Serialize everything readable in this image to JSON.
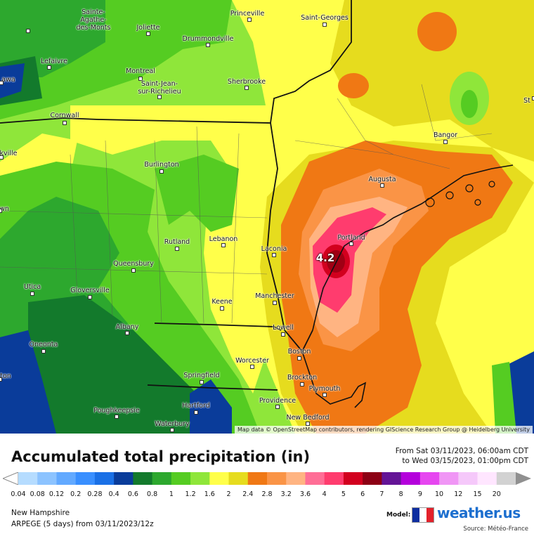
{
  "map": {
    "attribution": "Map data © OpenStreetMap contributors, rendering GIScience Research Group @ Heidelberg University",
    "max_value_label": "4.2",
    "cities": [
      {
        "name": "Sainte-Agathe-des-Monts",
        "lines": [
          "Sainte-",
          "Agathe-",
          "des-Monts"
        ]
      },
      {
        "name": "Joliette",
        "lines": [
          "Joliette"
        ]
      },
      {
        "name": "Drummondville",
        "lines": [
          "Drummondville"
        ]
      },
      {
        "name": "Princeville",
        "lines": [
          "Princeville"
        ]
      },
      {
        "name": "Saint-Georges",
        "lines": [
          "Saint-Georges"
        ]
      },
      {
        "name": "Lefaivre",
        "lines": [
          "Lefaivre"
        ]
      },
      {
        "name": "awa",
        "lines": [
          "awa"
        ]
      },
      {
        "name": "Montreal",
        "lines": [
          "Montreal"
        ]
      },
      {
        "name": "Saint-Jean-sur-Richelieu",
        "lines": [
          "Saint-Jean-",
          "sur-Richelieu"
        ]
      },
      {
        "name": "Sherbrooke",
        "lines": [
          "Sherbrooke"
        ]
      },
      {
        "name": "Cornwall",
        "lines": [
          "Cornwall"
        ]
      },
      {
        "name": "Bangor",
        "lines": [
          "Bangor"
        ]
      },
      {
        "name": "St",
        "lines": [
          "St"
        ]
      },
      {
        "name": "kville",
        "lines": [
          "kville"
        ]
      },
      {
        "name": "Burlington",
        "lines": [
          "Burlington"
        ]
      },
      {
        "name": "Augusta",
        "lines": [
          "Augusta"
        ]
      },
      {
        "name": "wn",
        "lines": [
          "wn"
        ]
      },
      {
        "name": "Portland",
        "lines": [
          "Portland"
        ]
      },
      {
        "name": "Rutland",
        "lines": [
          "Rutland"
        ]
      },
      {
        "name": "Lebanon",
        "lines": [
          "Lebanon"
        ]
      },
      {
        "name": "Laconia",
        "lines": [
          "Laconia"
        ]
      },
      {
        "name": "Queensbury",
        "lines": [
          "Queensbury"
        ]
      },
      {
        "name": "Utica",
        "lines": [
          "Utica"
        ]
      },
      {
        "name": "Gloversville",
        "lines": [
          "Gloversville"
        ]
      },
      {
        "name": "Manchester",
        "lines": [
          "Manchester"
        ]
      },
      {
        "name": "Keene",
        "lines": [
          "Keene"
        ]
      },
      {
        "name": "Albany",
        "lines": [
          "Albany"
        ]
      },
      {
        "name": "Lowell",
        "lines": [
          "Lowell"
        ]
      },
      {
        "name": "Oneonta",
        "lines": [
          "Oneonta"
        ]
      },
      {
        "name": "Boston",
        "lines": [
          "Boston"
        ]
      },
      {
        "name": "Worcester",
        "lines": [
          "Worcester"
        ]
      },
      {
        "name": "ton",
        "lines": [
          "ton"
        ]
      },
      {
        "name": "Springfield",
        "lines": [
          "Springfield"
        ]
      },
      {
        "name": "Brockton",
        "lines": [
          "Brockton"
        ]
      },
      {
        "name": "Plymouth",
        "lines": [
          "Plymouth"
        ]
      },
      {
        "name": "Providence",
        "lines": [
          "Providence"
        ]
      },
      {
        "name": "Hartford",
        "lines": [
          "Hartford"
        ]
      },
      {
        "name": "Poughkeepsie",
        "lines": [
          "Poughkeepsie"
        ]
      },
      {
        "name": "New Bedford",
        "lines": [
          "New Bedford"
        ]
      },
      {
        "name": "Waterbury",
        "lines": [
          "Waterbury"
        ]
      }
    ]
  },
  "footer": {
    "title": "Accumulated total precipitation (in)",
    "period_from": "From Sat 03/11/2023, 06:00am CDT",
    "period_to": "to Wed 03/15/2023, 01:00pm CDT",
    "region": "New Hampshire",
    "model_run": "ARPEGE (5 days) from 03/11/2023/12z",
    "model_label": "Model:",
    "brand": "weather.us",
    "source": "Source: Météo-France"
  },
  "legend": {
    "ticks": [
      "0.04",
      "0.08",
      "0.12",
      "0.2",
      "0.28",
      "0.4",
      "0.6",
      "0.8",
      "1",
      "1.2",
      "1.6",
      "2",
      "2.4",
      "2.8",
      "3.2",
      "3.6",
      "4",
      "5",
      "6",
      "7",
      "8",
      "9",
      "10",
      "12",
      "15",
      "20"
    ],
    "colors": [
      "#b5dcff",
      "#8cc3ff",
      "#62a9ff",
      "#398fff",
      "#1a70e6",
      "#0a3c9a",
      "#137a2c",
      "#2da82e",
      "#55cc22",
      "#8fe63a",
      "#ffff4a",
      "#e6dc1e",
      "#f07814",
      "#fa9446",
      "#ffb482",
      "#ff6e96",
      "#ff3c6e",
      "#d2001e",
      "#8c0014",
      "#641496",
      "#b400dc",
      "#e646f0",
      "#f096f5",
      "#f5c8fa",
      "#ffe6ff",
      "#d2d2d2"
    ],
    "map_colors": {
      "dark_blue": "#0a3c9a",
      "dark_green": "#137a2c",
      "green": "#2da82e",
      "lime": "#55cc22",
      "light_green": "#8fe63a",
      "yellow": "#ffff4a",
      "gold": "#e6dc1e",
      "orange": "#f07814",
      "light_orange": "#fa9446",
      "salmon": "#ffb482",
      "pink": "#ff6e96",
      "red": "#d2001e",
      "dark_red": "#a00014"
    }
  }
}
